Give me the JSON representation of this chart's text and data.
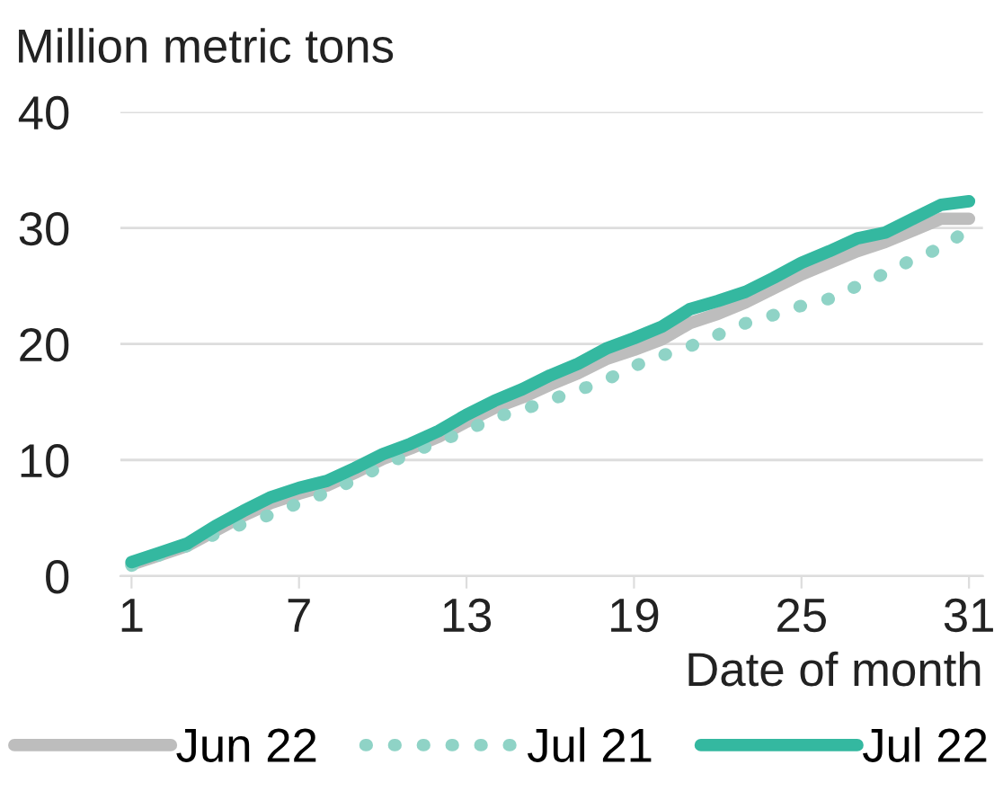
{
  "chart_data": {
    "type": "line",
    "ylabel": "Million metric tons",
    "xlabel": "Date of month",
    "x": [
      1,
      2,
      3,
      4,
      5,
      6,
      7,
      8,
      9,
      10,
      11,
      12,
      13,
      14,
      15,
      16,
      17,
      18,
      19,
      20,
      21,
      22,
      23,
      24,
      25,
      26,
      27,
      28,
      29,
      30,
      31
    ],
    "series": [
      {
        "name": "Jun 22",
        "color": "#bdbdbd",
        "line_style": "solid",
        "values": [
          1.0,
          1.8,
          2.6,
          3.9,
          5.2,
          6.3,
          7.1,
          7.8,
          8.9,
          10.1,
          11.0,
          12.0,
          13.3,
          14.5,
          15.4,
          16.5,
          17.5,
          18.7,
          19.5,
          20.4,
          21.8,
          22.6,
          23.6,
          24.8,
          26.0,
          27.0,
          28.0,
          28.8,
          29.8,
          30.8,
          30.8
        ]
      },
      {
        "name": "Jul 21",
        "color": "#8fd3c6",
        "line_style": "dotted",
        "values": [
          0.9,
          1.8,
          2.6,
          3.6,
          4.5,
          5.3,
          6.3,
          7.2,
          8.3,
          9.5,
          10.6,
          11.6,
          12.5,
          13.7,
          14.3,
          15.2,
          16.0,
          16.9,
          18.1,
          19.0,
          19.8,
          20.8,
          21.8,
          22.5,
          23.3,
          23.9,
          25.0,
          26.1,
          27.3,
          28.3,
          29.9
        ]
      },
      {
        "name": "Jul 22",
        "color": "#34b8a0",
        "line_style": "solid",
        "values": [
          1.2,
          2.0,
          2.8,
          4.3,
          5.6,
          6.8,
          7.6,
          8.2,
          9.3,
          10.5,
          11.4,
          12.5,
          13.9,
          15.1,
          16.1,
          17.3,
          18.3,
          19.6,
          20.5,
          21.5,
          23.0,
          23.7,
          24.5,
          25.7,
          27.0,
          28.0,
          29.1,
          29.6,
          30.8,
          32.0,
          32.3
        ]
      }
    ],
    "xlim": [
      0.6,
      31.5
    ],
    "xticks": [
      1,
      7,
      13,
      19,
      25,
      31
    ],
    "ylim": [
      0,
      40
    ],
    "yticks": [
      0,
      10,
      20,
      30,
      40
    ],
    "grid": "y",
    "legend": "bottom",
    "marker": "none"
  }
}
